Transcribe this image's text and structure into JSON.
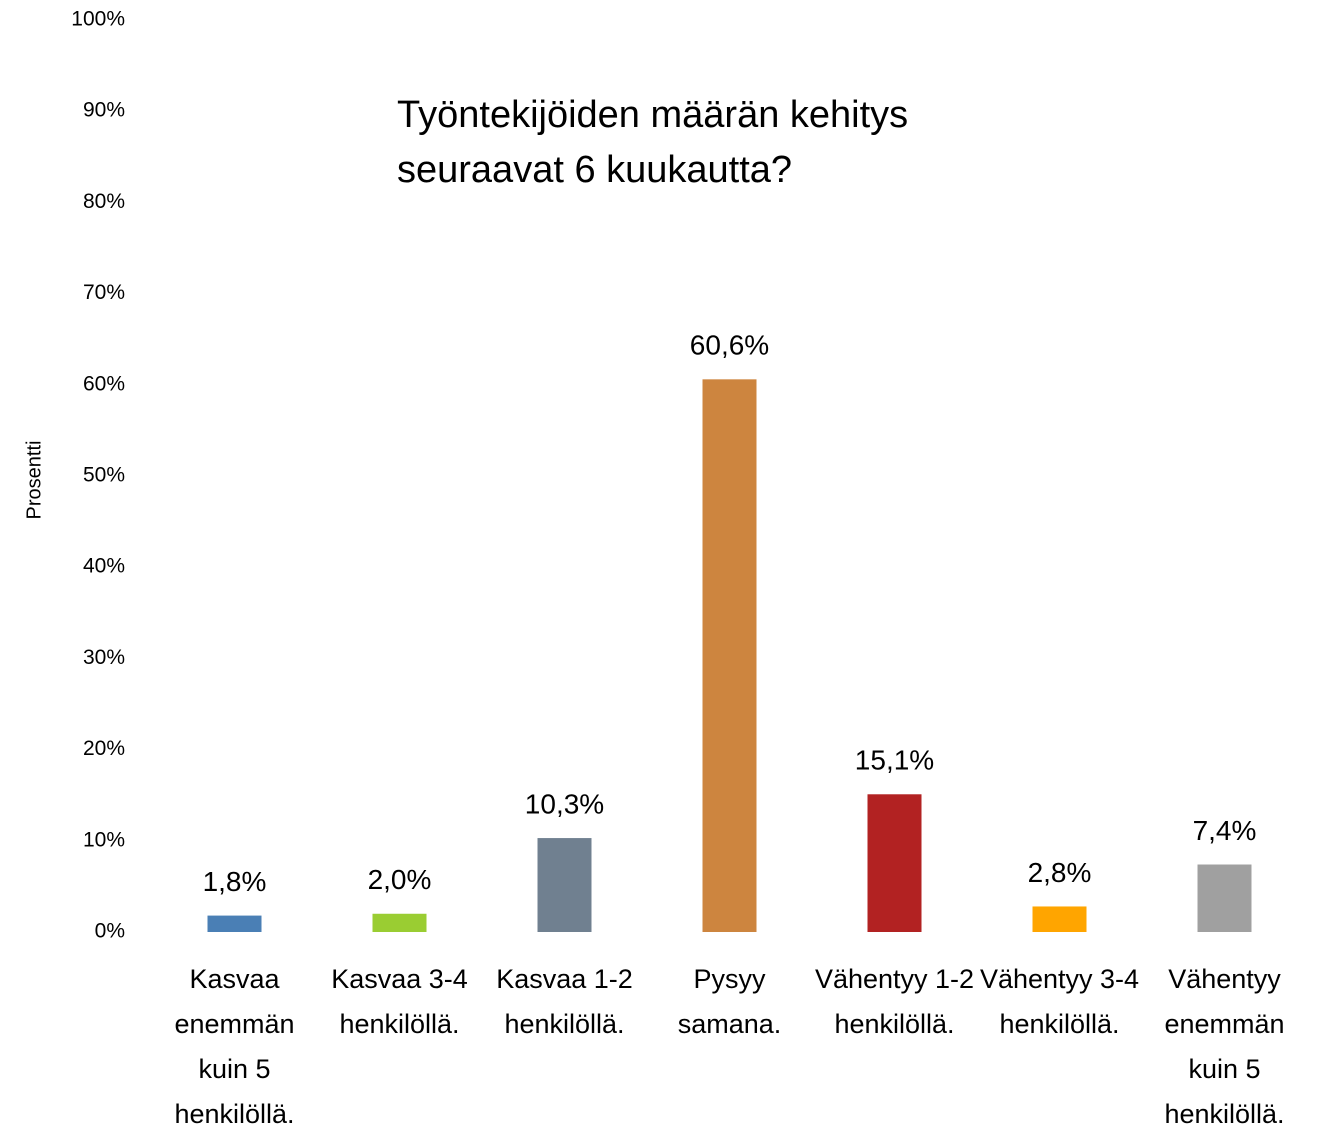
{
  "chart_data": {
    "type": "bar",
    "title": "Työntekijöiden määrän kehitys seuraavat 6 kuukautta?",
    "y_label": "Prosentti",
    "categories": [
      "Kasvaa enemmän kuin 5 henkilöllä.",
      "Kasvaa 3-4 henkilöllä.",
      "Kasvaa 1-2 henkilöllä.",
      "Pysyy samana.",
      "Vähentyy 1-2 henkilöllä.",
      "Vähentyy 3-4 henkilöllä.",
      "Vähentyy enemmän kuin 5 henkilöllä."
    ],
    "values": [
      1.8,
      2.0,
      10.3,
      60.6,
      15.1,
      2.8,
      7.4
    ],
    "value_labels": [
      "1,8%",
      "2,0%",
      "10,3%",
      "60,6%",
      "15,1%",
      "2,8%",
      "7,4%"
    ],
    "colors": [
      "#4a7fb5",
      "#9acd32",
      "#708090",
      "#cd853f",
      "#b22222",
      "#ffa500",
      "#a0a0a0"
    ],
    "ylim": [
      0,
      100
    ],
    "yticks": [
      {
        "value": 0,
        "label": "0%"
      },
      {
        "value": 10,
        "label": "10%"
      },
      {
        "value": 20,
        "label": "20%"
      },
      {
        "value": 30,
        "label": "30%"
      },
      {
        "value": 40,
        "label": "40%"
      },
      {
        "value": 50,
        "label": "50%"
      },
      {
        "value": 60,
        "label": "60%"
      },
      {
        "value": 70,
        "label": "70%"
      },
      {
        "value": 80,
        "label": "80%"
      },
      {
        "value": 90,
        "label": "90%"
      },
      {
        "value": 100,
        "label": "100%"
      }
    ],
    "grid": false
  }
}
